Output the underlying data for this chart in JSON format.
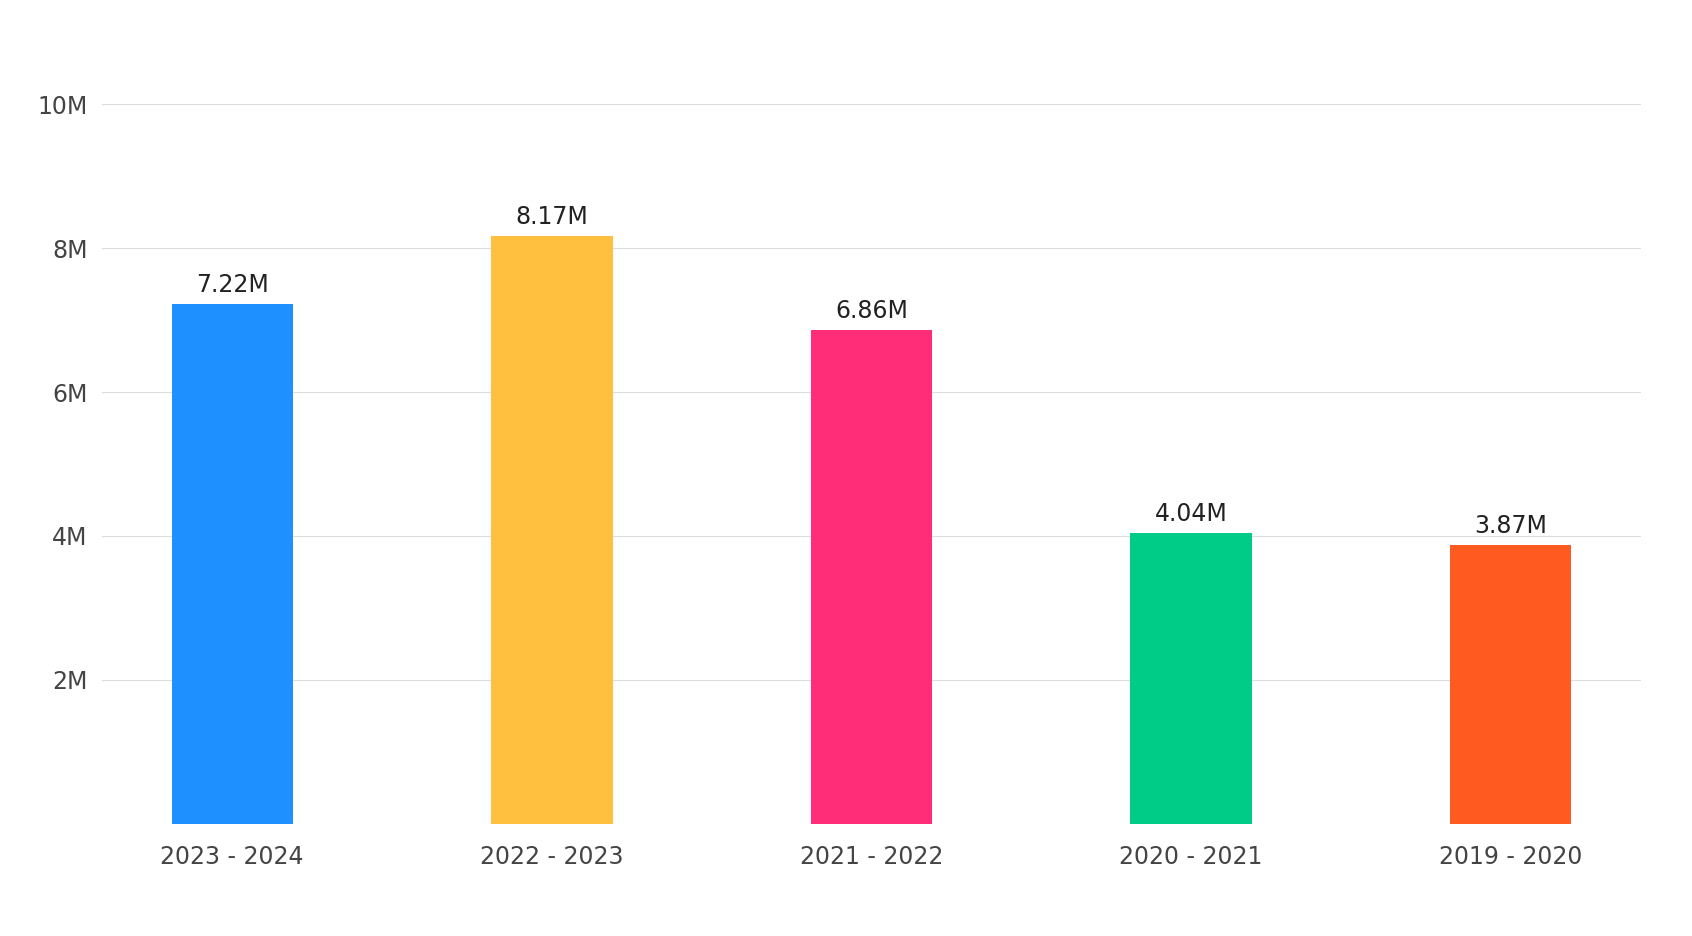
{
  "categories": [
    "2023 - 2024",
    "2022 - 2023",
    "2021 - 2022",
    "2020 - 2021",
    "2019 - 2020"
  ],
  "values": [
    7220000,
    8170000,
    6860000,
    4040000,
    3870000
  ],
  "labels": [
    "7.22M",
    "8.17M",
    "6.86M",
    "4.04M",
    "3.87M"
  ],
  "bar_colors": [
    "#1E90FF",
    "#FFC040",
    "#FF2D78",
    "#00CC88",
    "#FF5B20"
  ],
  "background_color": "#FFFFFF",
  "yticks": [
    0,
    2000000,
    4000000,
    6000000,
    8000000,
    10000000
  ],
  "ytick_labels": [
    "",
    "2M",
    "4M",
    "6M",
    "8M",
    "10M"
  ],
  "ylim": [
    0,
    10800000
  ],
  "label_fontsize": 17,
  "tick_fontsize": 17,
  "grid_color": "#DDDDDD",
  "bar_width": 0.38
}
